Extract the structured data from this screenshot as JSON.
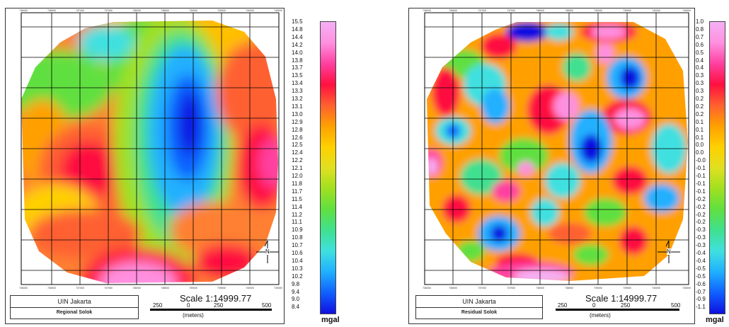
{
  "colors": {
    "ramp": [
      "#1010e0",
      "#1060ff",
      "#20b0ff",
      "#40e0e0",
      "#40e090",
      "#60e040",
      "#a0e020",
      "#e0e020",
      "#ffd000",
      "#ffa000",
      "#ff6030",
      "#ff1040",
      "#ff40a0",
      "#ff90e0",
      "#f4b0f4"
    ],
    "grid": "#000000"
  },
  "panels": [
    {
      "id": "left",
      "title_line1": "UIN Jakarta",
      "title_line2": "Regional Solok",
      "scale": "Scale 1:14999.77",
      "scale_ticks": [
        "250",
        "0",
        "250",
        "500"
      ],
      "scale_unit": "(meters)",
      "legend_values": [
        "15.5",
        "14.8",
        "14.4",
        "14.2",
        "14.0",
        "13.8",
        "13.7",
        "13.5",
        "13.4",
        "13.3",
        "13.2",
        "13.1",
        "13.0",
        "12.9",
        "12.8",
        "12.6",
        "12.5",
        "12.4",
        "12.2",
        "12.1",
        "12.0",
        "11.8",
        "11.7",
        "11.5",
        "11.4",
        "11.2",
        "11.1",
        "10.9",
        "10.8",
        "10.7",
        "10.6",
        "10.4",
        "10.3",
        "10.2",
        "9.8",
        "9.4",
        "9.0",
        "8.4"
      ],
      "legend_unit": "mgal",
      "north_label": "N",
      "x_coords": [
        "736000",
        "736500",
        "737000",
        "737500",
        "738000",
        "738500",
        "739000",
        "739500",
        "740000",
        "740500"
      ]
    },
    {
      "id": "right",
      "title_line1": "UIN Jakarta",
      "title_line2": "Residual Solok",
      "scale": "Scale 1:14999.77",
      "scale_ticks": [
        "250",
        "0",
        "250",
        "500"
      ],
      "scale_unit": "(meters)",
      "legend_values": [
        "1.0",
        "0.8",
        "0.7",
        "0.6",
        "0.5",
        "0.4",
        "0.4",
        "0.3",
        "0.3",
        "0.3",
        "0.2",
        "0.2",
        "0.2",
        "0.1",
        "0.1",
        "0.1",
        "0.0",
        "0.0",
        "-0.0",
        "-0.1",
        "-0.1",
        "-0.1",
        "-0.1",
        "-0.2",
        "-0.2",
        "-0.2",
        "-0.2",
        "-0.3",
        "-0.3",
        "-0.3",
        "-0.4",
        "-0.4",
        "-0.5",
        "-0.5",
        "-0.6",
        "-0.7",
        "-0.9",
        "-1.1"
      ],
      "legend_unit": "mgal",
      "north_label": "N",
      "x_coords": [
        "736000",
        "736500",
        "737000",
        "737500",
        "738000",
        "738500",
        "739000",
        "739500",
        "740000",
        "740500"
      ]
    }
  ]
}
